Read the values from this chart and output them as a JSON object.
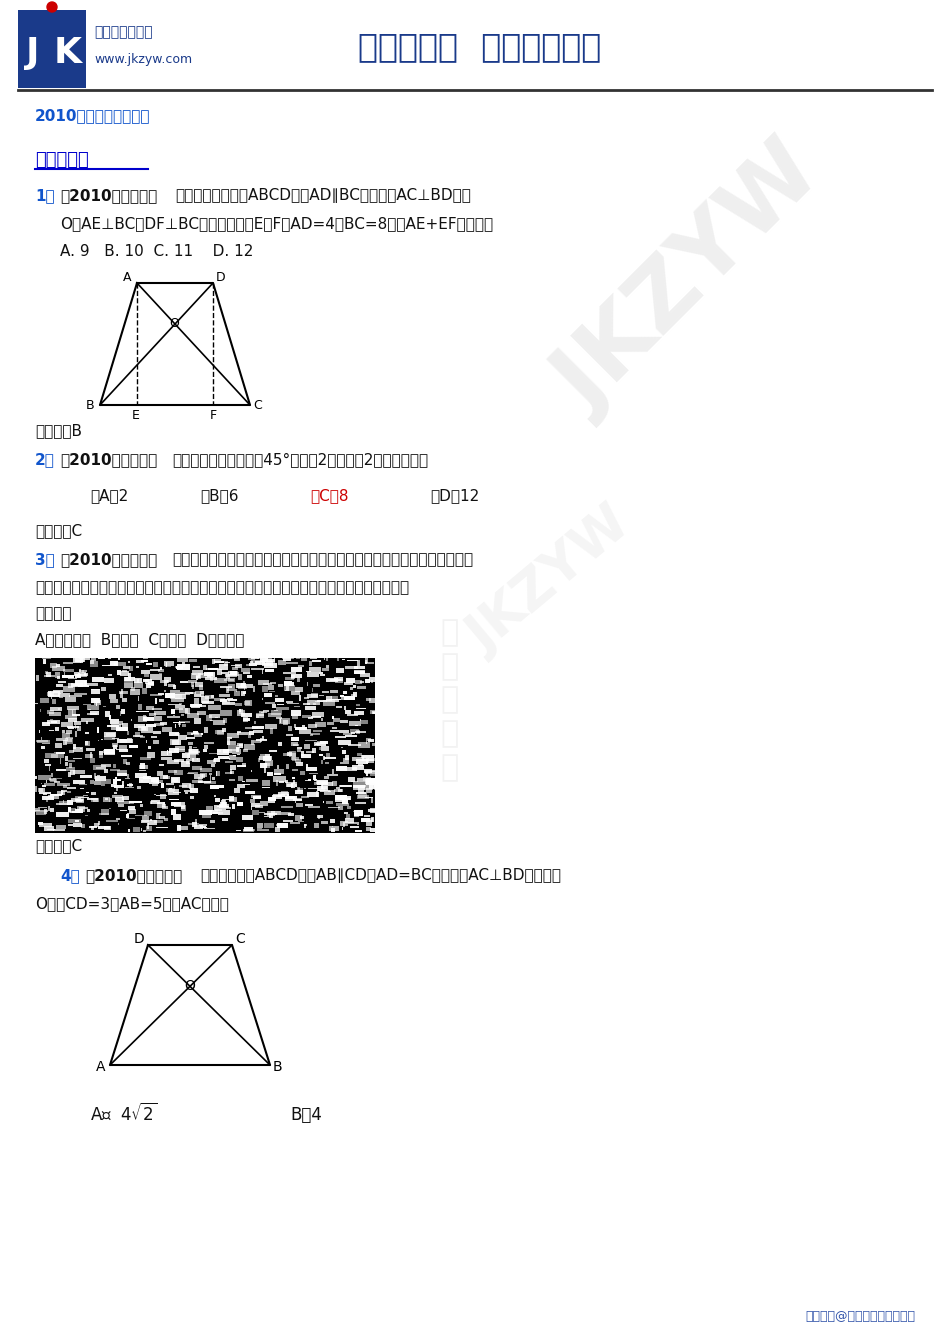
{
  "bg_color": "#ffffff",
  "header_title": "教考资源网  助您教考无忧",
  "subtitle": "2010中考数学分类汇编",
  "section_title": "一、选择题",
  "q1_num": "1．",
  "q1_source": "（2010安徽芜湖）",
  "q1_text1": "如图，在等腰梯形ABCD中，AD∥BC，对角线AC⊥BD于点",
  "q1_text2": "O，AE⊥BC，DF⊥BC，垂足分别为E、F，AD=4，BC=8，则AE+EF等于（）",
  "q1_options": "A. 9   B. 10  C. 11    D. 12",
  "q1_answer": "【答案】B",
  "q2_num": "2．",
  "q2_source": "（2010山东日照）",
  "q2_text": "已知等腰梯形的底角为45°，高为2，上底为2，则其面积为",
  "q2_opt_a": "（A）2",
  "q2_opt_b": "（B）6",
  "q2_opt_c": "（C）8",
  "q2_opt_d": "（D）12",
  "q2_answer": "【答案】C",
  "q3_num": "3．",
  "q3_source": "（2010山东烟台）",
  "q3_text1": "如图，小区的一角有一块形状为等梯形的空地，为了美化小区，社区居委会",
  "q3_text2": "计划在空地上建一个四边形的水池，使水池的四个顶点恰好在梯形各边的中点上，则水池的形",
  "q3_text3": "状一定是",
  "q3_options": "A、等腰梯形  B、矩形  C、菱形  D、正方形",
  "q3_answer": "【答案】C",
  "q4_num": "4．",
  "q4_source": "（2010山东威海）",
  "q4_text1": "如图，在梯形ABCD中，AB∥CD，AD=BC，对角线AC⊥BD，垂足为",
  "q4_text2": "O，若CD=3，AB=5，则AC的长为",
  "q4_opt_a": "A．  $4\\sqrt{2}$",
  "q4_opt_b": "B．4",
  "footer": "版权所有@中国教育考试资源网",
  "logo_cn1": "中国教考资源网",
  "logo_cn2": "www.jkzyw.com",
  "blue_dark": "#1a3a8a",
  "blue_logo": "#1a3a8a",
  "blue_num": "#1155cc",
  "red_ans": "#cc0000",
  "dark": "#111111",
  "footer_blue": "#3355aa"
}
